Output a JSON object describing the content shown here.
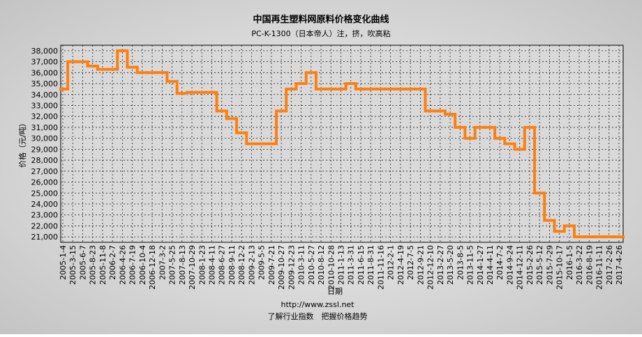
{
  "chart_data": {
    "type": "line",
    "title": "中国再生塑料网原料价格变化曲线",
    "subtitle": "PC-K-1300（日本帝人）注，挤，吹高粘",
    "y_label": "价格（元/吨）",
    "x_label": "日期",
    "footer_url": "http://www.zssl.net",
    "footer_text": "了解行业指数　把握价格趋势",
    "categories": [
      "2005-1-4",
      "2005-3-15",
      "2005-6-7",
      "2005-8-23",
      "2005-11-8",
      "2006-2-7",
      "2006-4-26",
      "2006-7-19",
      "2006-10-4",
      "2006-12-18",
      "2007-3-2",
      "2007-5-25",
      "2007-8-13",
      "2007-10-29",
      "2008-1-23",
      "2008-4-11",
      "2008-6-27",
      "2008-9-11",
      "2008-12-2",
      "2009-2-13",
      "2009-5-5",
      "2009-7-21",
      "2009-10-27",
      "2009-12-23",
      "2010-3-11",
      "2010-5-27",
      "2010-8-12",
      "2010-10-28",
      "2011-1-13",
      "2011-3-31",
      "2011-6-15",
      "2011-8-31",
      "2011-11-16",
      "2012-2-1",
      "2012-4-19",
      "2012-7-5",
      "2012-9-21",
      "2012-12-10",
      "2013-2-27",
      "2013-5-20",
      "2013-8-5",
      "2013-11-5",
      "2014-1-27",
      "2014-4-11",
      "2014-7-2",
      "2014-9-24",
      "2014-12-11",
      "2015-2-26",
      "2015-5-12",
      "2015-7-29",
      "2015-10-17",
      "2016-1-5",
      "2016-3-22",
      "2016-8-19",
      "2016-11-11",
      "2017-2-26",
      "2017-4-26"
    ],
    "series": [
      {
        "name": "PC-K-1300",
        "color": "#ff7f0e",
        "values": [
          34500,
          37000,
          37000,
          36600,
          36300,
          36300,
          38000,
          36500,
          36000,
          36000,
          36000,
          35200,
          34100,
          34200,
          34200,
          34200,
          32500,
          31800,
          30500,
          29500,
          29500,
          29500,
          32500,
          34500,
          35000,
          36000,
          34500,
          34500,
          34500,
          35000,
          34500,
          34500,
          34500,
          34500,
          34500,
          34500,
          34500,
          32500,
          32500,
          32200,
          31000,
          30000,
          31000,
          31000,
          30000,
          29500,
          29000,
          31000,
          25000,
          22500,
          21500,
          22000,
          21000,
          21000,
          21000,
          21000,
          21000
        ]
      }
    ],
    "ylim": [
      20500,
      38500
    ],
    "yticks": [
      {
        "value": 21000,
        "label": "21,000"
      },
      {
        "value": 22000,
        "label": "22,000"
      },
      {
        "value": 23000,
        "label": "23,000"
      },
      {
        "value": 24000,
        "label": "24,000"
      },
      {
        "value": 25000,
        "label": "25,000"
      },
      {
        "value": 26000,
        "label": "26,000"
      },
      {
        "value": 27000,
        "label": "27,000"
      },
      {
        "value": 28000,
        "label": "28,000"
      },
      {
        "value": 29000,
        "label": "29,000"
      },
      {
        "value": 30000,
        "label": "30,000"
      },
      {
        "value": 31000,
        "label": "31,000"
      },
      {
        "value": 32000,
        "label": "32,000"
      },
      {
        "value": 33000,
        "label": "33,000"
      },
      {
        "value": 34000,
        "label": "34,000"
      },
      {
        "value": 35000,
        "label": "35,000"
      },
      {
        "value": 36000,
        "label": "36,000"
      },
      {
        "value": 37000,
        "label": "37,000"
      },
      {
        "value": 38000,
        "label": "38,000"
      }
    ],
    "grid": true
  }
}
